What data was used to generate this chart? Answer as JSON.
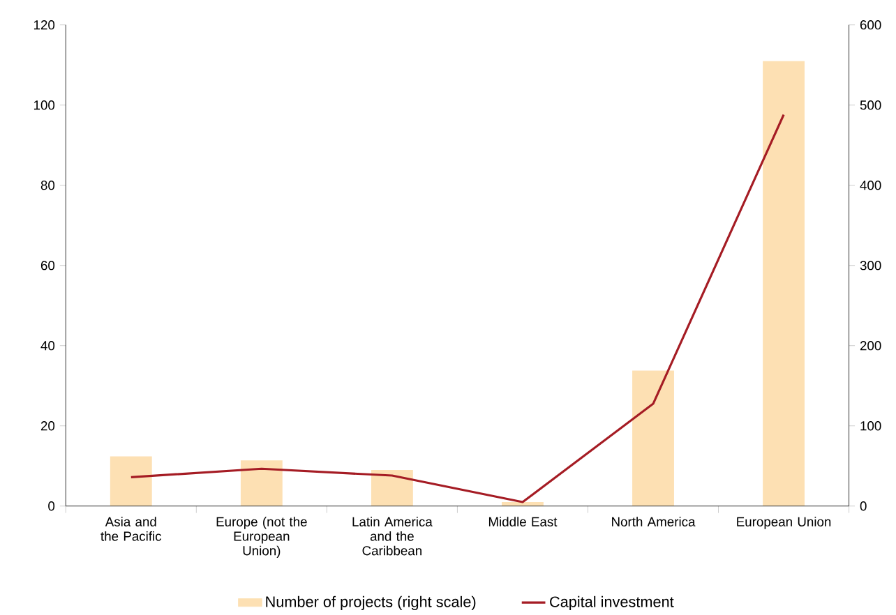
{
  "chart_data": {
    "type": "bar",
    "categories": [
      "Asia and the Pacific",
      "Europe (not the European Union)",
      "Latin America and the Caribbean",
      "Middle East",
      "North America",
      "European Union"
    ],
    "series": [
      {
        "name": "Number of projects (right scale)",
        "axis": "y2",
        "color": "#fde0b3",
        "values": [
          62,
          57,
          45,
          5,
          169,
          555
        ]
      },
      {
        "name": "Capital investment",
        "type": "line",
        "color": "#a51c24",
        "values": [
          7.2,
          9.3,
          7.6,
          1,
          25.5,
          97.6
        ]
      }
    ],
    "ylim": [
      0,
      120
    ],
    "yticks": [
      0,
      20,
      40,
      60,
      80,
      100,
      120
    ],
    "y2lim": [
      0,
      600
    ],
    "y2ticks": [
      0,
      100,
      200,
      300,
      400,
      500,
      600
    ],
    "legend": "bottom",
    "marker": "none",
    "line_style": "solid"
  }
}
